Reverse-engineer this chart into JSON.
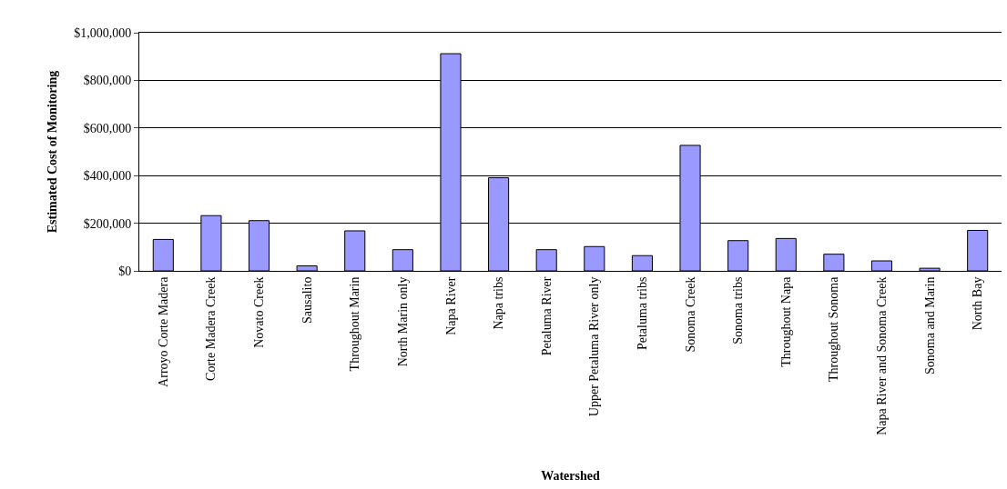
{
  "chart_data": {
    "type": "bar",
    "xlabel": "Watershed",
    "ylabel": "Estimated Cost of Monitoring",
    "categories": [
      "Arroyo Corte Madera",
      "Corte Madera Creek",
      "Novato Creek",
      "Sausalito",
      "Throughout Marin",
      "North Marin only",
      "Napa River",
      "Napa tribs",
      "Petaluma River",
      "Upper Petaluma River only",
      "Petaluma tribs",
      "Sonoma Creek",
      "Sonoma tribs",
      "Throughout Napa",
      "Throughout Sonoma",
      "Napa River and Sonoma Creek",
      "Sonoma and Marin",
      "North Bay"
    ],
    "values": [
      132000,
      232000,
      211000,
      21000,
      168000,
      89000,
      912000,
      391000,
      89000,
      102000,
      64000,
      527000,
      127000,
      136000,
      70000,
      42000,
      11000,
      170000
    ],
    "color": "#9999ff",
    "ylim": [
      0,
      1000000
    ],
    "yticks": [
      {
        "value": 0,
        "label": "$0"
      },
      {
        "value": 200000,
        "label": "$200,000"
      },
      {
        "value": 400000,
        "label": "$400,000"
      },
      {
        "value": 600000,
        "label": "$600,000"
      },
      {
        "value": 800000,
        "label": "$800,000"
      },
      {
        "value": 1000000,
        "label": "$1,000,000"
      }
    ],
    "grid": "y"
  }
}
